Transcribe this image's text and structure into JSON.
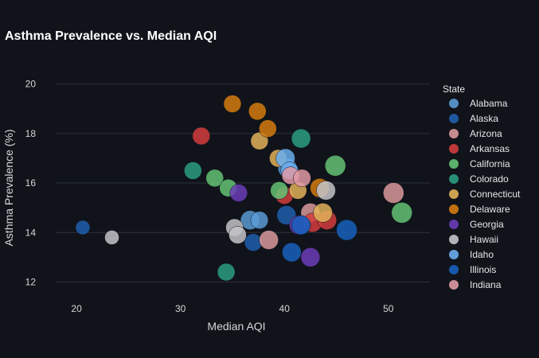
{
  "chart_data": {
    "type": "scatter",
    "title": "Asthma Prevalence vs. Median AQI",
    "xlabel": "Median AQI",
    "ylabel": "Asthma Prevalence (%)",
    "xlim": [
      18,
      54
    ],
    "ylim": [
      11.5,
      20.6
    ],
    "xticks": [
      20,
      30,
      40,
      50
    ],
    "yticks": [
      12,
      14,
      16,
      18,
      20
    ],
    "grid": true,
    "legend": {
      "title": "State",
      "placement": "right"
    },
    "series": [
      {
        "name": "Alabama",
        "color": "#5b9bd5",
        "points": [
          {
            "x": 36.7,
            "y": 14.5,
            "s": 12
          },
          {
            "x": 37.6,
            "y": 14.5,
            "s": 11
          },
          {
            "x": 40.3,
            "y": 16.6,
            "s": 12
          }
        ]
      },
      {
        "name": "Alaska",
        "color": "#1f5fad",
        "points": [
          {
            "x": 20.6,
            "y": 14.2,
            "s": 9
          },
          {
            "x": 37.0,
            "y": 13.6,
            "s": 11
          },
          {
            "x": 40.2,
            "y": 14.7,
            "s": 12
          }
        ]
      },
      {
        "name": "Arizona",
        "color": "#d9999b",
        "points": [
          {
            "x": 38.5,
            "y": 13.7,
            "s": 12
          },
          {
            "x": 42.5,
            "y": 14.8,
            "s": 12
          },
          {
            "x": 50.5,
            "y": 15.6,
            "s": 13
          }
        ]
      },
      {
        "name": "Arkansas",
        "color": "#d33d3d",
        "points": [
          {
            "x": 32.0,
            "y": 17.9,
            "s": 11
          },
          {
            "x": 40.0,
            "y": 15.5,
            "s": 11
          },
          {
            "x": 42.7,
            "y": 14.4,
            "s": 12
          },
          {
            "x": 44.1,
            "y": 14.5,
            "s": 12
          }
        ]
      },
      {
        "name": "California",
        "color": "#64c274",
        "points": [
          {
            "x": 33.3,
            "y": 16.2,
            "s": 11
          },
          {
            "x": 34.6,
            "y": 15.8,
            "s": 11
          },
          {
            "x": 39.5,
            "y": 15.7,
            "s": 11
          },
          {
            "x": 44.9,
            "y": 16.7,
            "s": 13
          },
          {
            "x": 51.3,
            "y": 14.8,
            "s": 13
          }
        ]
      },
      {
        "name": "Colorado",
        "color": "#2a9d7f",
        "points": [
          {
            "x": 31.2,
            "y": 16.5,
            "s": 11
          },
          {
            "x": 34.4,
            "y": 12.4,
            "s": 11
          },
          {
            "x": 41.6,
            "y": 17.8,
            "s": 12
          }
        ]
      },
      {
        "name": "Connecticut",
        "color": "#e1b159",
        "points": [
          {
            "x": 37.6,
            "y": 17.7,
            "s": 11
          },
          {
            "x": 39.4,
            "y": 17.0,
            "s": 11
          },
          {
            "x": 41.3,
            "y": 15.7,
            "s": 11
          },
          {
            "x": 43.7,
            "y": 14.8,
            "s": 12
          }
        ]
      },
      {
        "name": "Delaware",
        "color": "#d57b0f",
        "points": [
          {
            "x": 35.0,
            "y": 19.2,
            "s": 11
          },
          {
            "x": 37.4,
            "y": 18.9,
            "s": 11
          },
          {
            "x": 38.4,
            "y": 18.2,
            "s": 11
          },
          {
            "x": 43.4,
            "y": 15.8,
            "s": 12
          }
        ]
      },
      {
        "name": "Georgia",
        "color": "#6b3db8",
        "points": [
          {
            "x": 35.6,
            "y": 15.6,
            "s": 11
          },
          {
            "x": 41.4,
            "y": 14.3,
            "s": 12
          },
          {
            "x": 42.5,
            "y": 13.0,
            "s": 12
          }
        ]
      },
      {
        "name": "Hawaii",
        "color": "#c4c4c8",
        "points": [
          {
            "x": 23.4,
            "y": 13.8,
            "s": 9
          },
          {
            "x": 35.2,
            "y": 14.2,
            "s": 11
          },
          {
            "x": 35.5,
            "y": 13.9,
            "s": 11
          },
          {
            "x": 44.0,
            "y": 15.7,
            "s": 12
          }
        ]
      },
      {
        "name": "Idaho",
        "color": "#6aaef0",
        "points": [
          {
            "x": 40.1,
            "y": 17.0,
            "s": 12
          },
          {
            "x": 40.5,
            "y": 16.5,
            "s": 11
          }
        ]
      },
      {
        "name": "Illinois",
        "color": "#1860bd",
        "points": [
          {
            "x": 40.7,
            "y": 13.2,
            "s": 12
          },
          {
            "x": 41.6,
            "y": 14.3,
            "s": 12
          },
          {
            "x": 46.0,
            "y": 14.1,
            "s": 13
          }
        ]
      },
      {
        "name": "Indiana",
        "color": "#e09aa6",
        "points": [
          {
            "x": 40.6,
            "y": 16.3,
            "s": 11
          },
          {
            "x": 41.7,
            "y": 16.2,
            "s": 11
          }
        ]
      }
    ]
  }
}
